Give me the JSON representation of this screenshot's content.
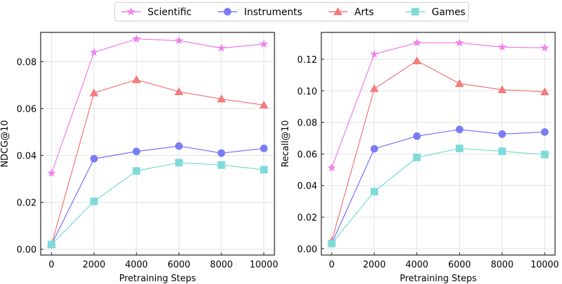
{
  "chart_data": {
    "type": "line",
    "legend": {
      "placement": "top-center",
      "entries": [
        "Scientific",
        "Instruments",
        "Arts",
        "Games"
      ]
    },
    "series_style": [
      {
        "name": "Scientific",
        "color": "#ee82ee",
        "marker": "star"
      },
      {
        "name": "Instruments",
        "color": "#7b7bf5",
        "marker": "circle"
      },
      {
        "name": "Arts",
        "color": "#f47c7c",
        "marker": "triangle"
      },
      {
        "name": "Games",
        "color": "#7fdbd9",
        "marker": "square"
      }
    ],
    "panels": [
      {
        "xlabel": "Pretraining Steps",
        "ylabel": "NDCG@10",
        "x": [
          0,
          2000,
          4000,
          6000,
          8000,
          10000
        ],
        "xticks": [
          "0",
          "2000",
          "4000",
          "6000",
          "8000",
          "10000"
        ],
        "yticks": [
          "0.00",
          "0.02",
          "0.04",
          "0.06",
          "0.08"
        ],
        "ytick_values": [
          0,
          0.02,
          0.04,
          0.06,
          0.08
        ],
        "ylim": [
          -0.0025,
          0.0925
        ],
        "grid": true,
        "series": [
          {
            "name": "Scientific",
            "values": [
              0.0324,
              0.084,
              0.0897,
              0.089,
              0.0858,
              0.0875
            ]
          },
          {
            "name": "Instruments",
            "values": [
              0.002,
              0.0386,
              0.0417,
              0.044,
              0.041,
              0.043
            ]
          },
          {
            "name": "Arts",
            "values": [
              0.002,
              0.0667,
              0.0723,
              0.0672,
              0.0641,
              0.0615
            ]
          },
          {
            "name": "Games",
            "values": [
              0.002,
              0.0204,
              0.0334,
              0.0369,
              0.0359,
              0.0339
            ]
          }
        ]
      },
      {
        "xlabel": "Pretraining Steps",
        "ylabel": "Recall@10",
        "x": [
          0,
          2000,
          4000,
          6000,
          8000,
          10000
        ],
        "xticks": [
          "0",
          "2000",
          "4000",
          "6000",
          "8000",
          "10000"
        ],
        "yticks": [
          "0.00",
          "0.02",
          "0.04",
          "0.06",
          "0.08",
          "0.10",
          "0.12"
        ],
        "ytick_values": [
          0,
          0.02,
          0.04,
          0.06,
          0.08,
          0.1,
          0.12
        ],
        "ylim": [
          -0.004,
          0.137
        ],
        "grid": true,
        "series": [
          {
            "name": "Scientific",
            "values": [
              0.0512,
              0.1232,
              0.1304,
              0.1304,
              0.1277,
              0.1272
            ]
          },
          {
            "name": "Instruments",
            "values": [
              0.0033,
              0.0633,
              0.0713,
              0.0755,
              0.0726,
              0.0739
            ]
          },
          {
            "name": "Arts",
            "values": [
              0.0048,
              0.1014,
              0.119,
              0.1046,
              0.1007,
              0.0994
            ]
          },
          {
            "name": "Games",
            "values": [
              0.0033,
              0.0362,
              0.0578,
              0.0635,
              0.0617,
              0.0597
            ]
          }
        ]
      }
    ]
  }
}
